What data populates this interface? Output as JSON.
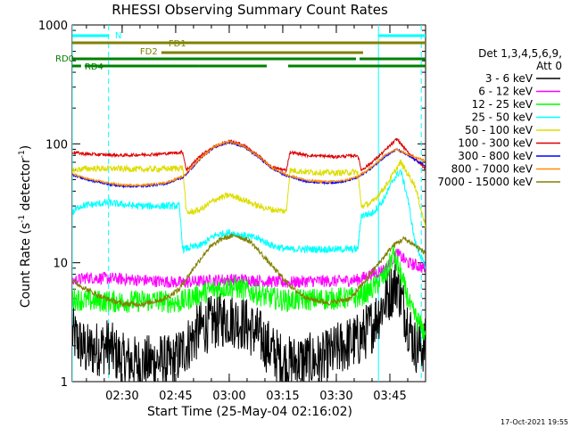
{
  "chart_data": {
    "type": "line",
    "title": "RHESSI Observing Summary Count Rates",
    "xlabel": "Start Time (25-May-04 02:16:02)",
    "ylabel": "Count Rate (s⁻¹ detector⁻¹)",
    "ylabel_parts": {
      "main": "Count Rate (s",
      "sup1": "-1",
      "mid": " detector",
      "sup2": "-1",
      "end": ")"
    },
    "scale": "log",
    "xlim_min": [
      16.03,
      115.0
    ],
    "ylim": [
      1,
      1000
    ],
    "x_ticks": [
      {
        "v": 30,
        "label": "02:30"
      },
      {
        "v": 45,
        "label": "02:45"
      },
      {
        "v": 60,
        "label": "03:00"
      },
      {
        "v": 75,
        "label": "03:15"
      },
      {
        "v": 90,
        "label": "03:30"
      },
      {
        "v": 105,
        "label": "03:45"
      }
    ],
    "y_ticks": [
      {
        "v": 1,
        "label": "1"
      },
      {
        "v": 10,
        "label": "10"
      },
      {
        "v": 100,
        "label": "100"
      },
      {
        "v": 1000,
        "label": "1000"
      }
    ],
    "legend_position": "right",
    "legend_header": [
      "Det 1,3,4,5,6,9,",
      "Att 0"
    ],
    "footer_date": "17-Oct-2021 19:55",
    "series": [
      {
        "name": "3 - 6 keV",
        "color": "#000000",
        "values": [
          [
            16.03,
            2.5
          ],
          [
            20,
            1.8
          ],
          [
            26,
            2.0
          ],
          [
            30,
            1.5
          ],
          [
            35,
            1.4
          ],
          [
            40,
            1.5
          ],
          [
            44,
            1.4
          ],
          [
            48,
            2.0
          ],
          [
            52,
            2.8
          ],
          [
            56,
            3.2
          ],
          [
            60,
            3.4
          ],
          [
            64,
            3.1
          ],
          [
            68,
            2.5
          ],
          [
            72,
            1.8
          ],
          [
            76,
            1.4
          ],
          [
            80,
            1.5
          ],
          [
            86,
            1.5
          ],
          [
            92,
            2.0
          ],
          [
            96,
            2.2
          ],
          [
            100,
            3.0
          ],
          [
            104,
            5.0
          ],
          [
            107,
            7.0
          ],
          [
            109,
            4.0
          ],
          [
            112,
            2.0
          ],
          [
            115,
            2.0
          ]
        ]
      },
      {
        "name": "6 - 12 keV",
        "color": "#ff00ff",
        "values": [
          [
            16.03,
            7.0
          ],
          [
            20,
            7.5
          ],
          [
            30,
            7.3
          ],
          [
            40,
            7.0
          ],
          [
            47,
            6.8
          ],
          [
            52,
            7.0
          ],
          [
            58,
            7.2
          ],
          [
            64,
            7.2
          ],
          [
            70,
            7.0
          ],
          [
            76,
            6.8
          ],
          [
            82,
            7.0
          ],
          [
            90,
            7.0
          ],
          [
            96,
            7.2
          ],
          [
            100,
            8.0
          ],
          [
            104,
            9.0
          ],
          [
            107,
            12.0
          ],
          [
            110,
            10.0
          ],
          [
            115,
            9.0
          ]
        ]
      },
      {
        "name": "12 - 25 keV",
        "color": "#00ff00",
        "values": [
          [
            16.03,
            5.0
          ],
          [
            20,
            4.8
          ],
          [
            30,
            4.7
          ],
          [
            40,
            4.8
          ],
          [
            46,
            4.6
          ],
          [
            50,
            5.2
          ],
          [
            56,
            6.0
          ],
          [
            60,
            6.3
          ],
          [
            64,
            6.0
          ],
          [
            70,
            5.2
          ],
          [
            76,
            4.8
          ],
          [
            82,
            4.9
          ],
          [
            90,
            5.0
          ],
          [
            96,
            5.1
          ],
          [
            100,
            6.0
          ],
          [
            104,
            8.0
          ],
          [
            106,
            12.0
          ],
          [
            108,
            8.0
          ],
          [
            111,
            4.0
          ],
          [
            115,
            2.5
          ]
        ]
      },
      {
        "name": "25 - 50 keV",
        "color": "#00ffff",
        "values": [
          [
            16.03,
            26.0
          ],
          [
            18,
            30.0
          ],
          [
            26,
            32.0
          ],
          [
            34,
            30.0
          ],
          [
            42,
            30.0
          ],
          [
            46,
            30.0
          ],
          [
            47,
            13.0
          ],
          [
            52,
            14.0
          ],
          [
            56,
            17.0
          ],
          [
            60,
            18.0
          ],
          [
            64,
            17.0
          ],
          [
            68,
            16.0
          ],
          [
            72,
            14.0
          ],
          [
            76,
            13.0
          ],
          [
            78,
            13.0
          ],
          [
            80,
            13.0
          ],
          [
            86,
            13.0
          ],
          [
            92,
            13.0
          ],
          [
            96,
            13.0
          ],
          [
            97,
            25.0
          ],
          [
            100,
            26.0
          ],
          [
            103,
            33.0
          ],
          [
            106,
            50.0
          ],
          [
            108,
            60.0
          ],
          [
            110,
            35.0
          ],
          [
            112,
            15.0
          ],
          [
            115,
            9.0
          ]
        ]
      },
      {
        "name": "50 - 100 keV",
        "color": "#dddd00",
        "values": [
          [
            16.03,
            60.0
          ],
          [
            20,
            62.0
          ],
          [
            28,
            62.0
          ],
          [
            36,
            61.0
          ],
          [
            44,
            62.0
          ],
          [
            47,
            63.0
          ],
          [
            48,
            26.0
          ],
          [
            52,
            28.0
          ],
          [
            56,
            34.0
          ],
          [
            60,
            37.0
          ],
          [
            64,
            34.0
          ],
          [
            68,
            30.0
          ],
          [
            72,
            28.0
          ],
          [
            76,
            27.0
          ],
          [
            77,
            60.0
          ],
          [
            82,
            58.0
          ],
          [
            90,
            57.0
          ],
          [
            96,
            58.0
          ],
          [
            97,
            30.0
          ],
          [
            100,
            32.0
          ],
          [
            104,
            45.0
          ],
          [
            108,
            70.0
          ],
          [
            112,
            45.0
          ],
          [
            115,
            20.0
          ]
        ]
      },
      {
        "name": "100 - 300 keV",
        "color": "#dd0000",
        "values": [
          [
            16.03,
            85.0
          ],
          [
            20,
            82.0
          ],
          [
            30,
            80.0
          ],
          [
            40,
            82.0
          ],
          [
            47,
            85.0
          ],
          [
            48,
            60.0
          ],
          [
            52,
            80.0
          ],
          [
            56,
            95.0
          ],
          [
            60,
            105.0
          ],
          [
            64,
            98.0
          ],
          [
            68,
            80.0
          ],
          [
            72,
            63.0
          ],
          [
            76,
            60.0
          ],
          [
            77,
            85.0
          ],
          [
            82,
            80.0
          ],
          [
            90,
            78.0
          ],
          [
            96,
            80.0
          ],
          [
            97,
            60.0
          ],
          [
            100,
            70.0
          ],
          [
            104,
            90.0
          ],
          [
            107,
            110.0
          ],
          [
            110,
            85.0
          ],
          [
            115,
            62.0
          ]
        ]
      },
      {
        "name": "300 - 800 keV",
        "color": "#0000ff",
        "values": [
          [
            16.03,
            55.0
          ],
          [
            20,
            50.0
          ],
          [
            26,
            46.0
          ],
          [
            30,
            44.0
          ],
          [
            36,
            44.0
          ],
          [
            42,
            46.0
          ],
          [
            47,
            52.0
          ],
          [
            52,
            75.0
          ],
          [
            56,
            95.0
          ],
          [
            60,
            103.0
          ],
          [
            64,
            95.0
          ],
          [
            68,
            78.0
          ],
          [
            72,
            62.0
          ],
          [
            76,
            54.0
          ],
          [
            82,
            48.0
          ],
          [
            88,
            47.0
          ],
          [
            92,
            48.0
          ],
          [
            96,
            52.0
          ],
          [
            100,
            63.0
          ],
          [
            104,
            80.0
          ],
          [
            107,
            90.0
          ],
          [
            110,
            80.0
          ],
          [
            115,
            65.0
          ]
        ]
      },
      {
        "name": "800 - 7000 keV",
        "color": "#ff8c00",
        "values": [
          [
            16.03,
            56.0
          ],
          [
            20,
            51.0
          ],
          [
            26,
            47.0
          ],
          [
            30,
            45.0
          ],
          [
            36,
            45.0
          ],
          [
            42,
            47.0
          ],
          [
            47,
            53.0
          ],
          [
            52,
            76.0
          ],
          [
            56,
            96.0
          ],
          [
            60,
            104.0
          ],
          [
            64,
            96.0
          ],
          [
            68,
            79.0
          ],
          [
            72,
            63.0
          ],
          [
            76,
            55.0
          ],
          [
            82,
            49.0
          ],
          [
            88,
            48.0
          ],
          [
            92,
            49.0
          ],
          [
            96,
            53.0
          ],
          [
            100,
            64.0
          ],
          [
            104,
            82.0
          ],
          [
            107,
            90.0
          ],
          [
            110,
            82.0
          ],
          [
            115,
            72.0
          ]
        ]
      },
      {
        "name": "7000 - 15000 keV",
        "color": "#808000",
        "values": [
          [
            16.03,
            7.0
          ],
          [
            20,
            6.0
          ],
          [
            24,
            5.2
          ],
          [
            30,
            4.5
          ],
          [
            36,
            4.5
          ],
          [
            42,
            5.0
          ],
          [
            46,
            6.0
          ],
          [
            50,
            9.0
          ],
          [
            54,
            13.0
          ],
          [
            58,
            16.0
          ],
          [
            62,
            17.0
          ],
          [
            66,
            15.0
          ],
          [
            70,
            11.0
          ],
          [
            74,
            8.0
          ],
          [
            78,
            6.0
          ],
          [
            82,
            5.0
          ],
          [
            88,
            4.6
          ],
          [
            94,
            5.0
          ],
          [
            98,
            7.0
          ],
          [
            102,
            10.0
          ],
          [
            106,
            14.0
          ],
          [
            109,
            16.0
          ],
          [
            112,
            14.0
          ],
          [
            115,
            12.0
          ]
        ]
      }
    ],
    "flag_bars": [
      {
        "label": "N",
        "color": "#00ffff",
        "segments": [
          [
            16.03,
            26.2
          ],
          [
            101.8,
            115.0
          ]
        ]
      },
      {
        "label": "FD1",
        "color": "#808000",
        "segments": [
          [
            16.03,
            97.5
          ],
          [
            97.5,
            115.0
          ]
        ]
      },
      {
        "label": "FD2",
        "color": "#808000",
        "segments": [
          [
            41.0,
            97.5
          ]
        ]
      },
      {
        "label": "RD0",
        "color": "#008000",
        "segments": [
          [
            16.03,
            95.5
          ],
          [
            96.5,
            115.0
          ]
        ]
      },
      {
        "label": "RD4",
        "color": "#008000",
        "segments": [
          [
            16.03,
            18.5
          ],
          [
            19.5,
            51.5
          ],
          [
            51.5,
            70.5
          ],
          [
            76.5,
            96.5
          ],
          [
            96.5,
            115.0
          ]
        ]
      }
    ],
    "vertical_markers": [
      {
        "x": 16.03,
        "style": "solid",
        "color": "#00ffff"
      },
      {
        "x": 26.2,
        "style": "dashed",
        "color": "#00ffff"
      },
      {
        "x": 101.8,
        "style": "solid",
        "color": "#00ffff"
      },
      {
        "x": 113.8,
        "style": "dashed",
        "color": "#00ffff"
      }
    ]
  }
}
